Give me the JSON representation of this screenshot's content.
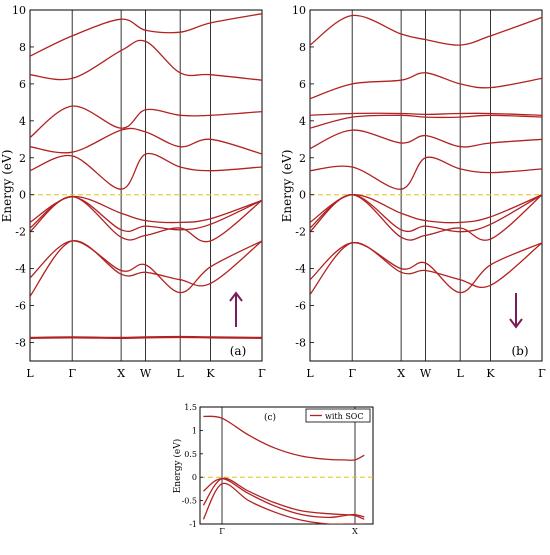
{
  "chart_data": [
    {
      "type": "line",
      "panel_label": "(a)",
      "ylabel": "Energy (eV)",
      "ylim": [
        -9,
        10
      ],
      "yticks": [
        "-8",
        "-6",
        "-4",
        "-2",
        "0",
        "2",
        "4",
        "6",
        "8",
        "10"
      ],
      "kpoints": [
        "L",
        "Γ",
        "X",
        "W",
        "L",
        "K",
        "Γ"
      ],
      "kpos": [
        0,
        1,
        2.16,
        2.74,
        3.56,
        4.28,
        5.5
      ],
      "fermi_level": 0,
      "arrow": "up",
      "colors": {
        "bands": "#b22222",
        "fermi": "#e8c018",
        "green": "#2e8b2e",
        "arrow": "#7a1c5e"
      },
      "bands": [
        [
          -7.75,
          -7.72,
          -7.75,
          -7.72,
          -7.7,
          -7.72,
          -7.75
        ],
        [
          -5.5,
          -2.5,
          -4.3,
          -4.2,
          -4.6,
          -4.8,
          -2.5
        ],
        [
          -4.5,
          -2.5,
          -4.1,
          -3.8,
          -5.3,
          -3.9,
          -2.5
        ],
        [
          -2.0,
          -0.1,
          -2.3,
          -2.2,
          -1.8,
          -2.5,
          -0.3
        ],
        [
          -1.8,
          -0.1,
          -1.9,
          -1.7,
          -1.9,
          -1.6,
          -0.3
        ],
        [
          -1.5,
          -0.1,
          -1.0,
          -1.4,
          -1.5,
          -1.3,
          -0.3
        ],
        [
          1.3,
          2.1,
          0.3,
          2.2,
          1.5,
          1.3,
          1.5
        ],
        [
          2.6,
          2.3,
          3.5,
          3.4,
          2.6,
          3.0,
          2.2
        ],
        [
          3.1,
          4.8,
          3.6,
          4.6,
          4.3,
          4.3,
          4.5
        ],
        [
          6.5,
          6.3,
          7.8,
          8.3,
          6.6,
          6.5,
          6.2
        ],
        [
          7.5,
          8.6,
          9.5,
          8.9,
          8.8,
          9.3,
          9.8
        ]
      ]
    },
    {
      "type": "line",
      "panel_label": "(b)",
      "ylabel": "Energy (eV)",
      "ylim": [
        -9,
        10
      ],
      "yticks": [
        "-8",
        "-6",
        "-4",
        "-2",
        "0",
        "2",
        "4",
        "6",
        "8",
        "10"
      ],
      "kpoints": [
        "L",
        "Γ",
        "X",
        "W",
        "L",
        "K",
        "Γ"
      ],
      "kpos": [
        0,
        1,
        2.16,
        2.74,
        3.56,
        4.28,
        5.5
      ],
      "fermi_level": 0,
      "arrow": "down",
      "colors": {
        "bands": "#b22222",
        "fermi": "#e8c018",
        "arrow": "#7a1c5e"
      },
      "bands": [
        [
          -5.4,
          -2.6,
          -4.2,
          -4.1,
          -4.6,
          -4.9,
          -2.6
        ],
        [
          -4.6,
          -2.6,
          -4.0,
          -3.7,
          -5.3,
          -3.8,
          -2.6
        ],
        [
          -2.0,
          0.0,
          -2.3,
          -2.2,
          -1.8,
          -2.4,
          0.0
        ],
        [
          -1.8,
          0.0,
          -1.9,
          -1.7,
          -2.0,
          -1.6,
          0.0
        ],
        [
          -1.5,
          0.0,
          -1.0,
          -1.4,
          -1.5,
          -1.2,
          0.0
        ],
        [
          1.3,
          1.5,
          0.3,
          2.0,
          1.4,
          1.2,
          1.4
        ],
        [
          2.5,
          3.5,
          2.8,
          3.2,
          2.6,
          2.8,
          3.0
        ],
        [
          3.6,
          4.2,
          4.3,
          4.2,
          4.2,
          4.3,
          4.2
        ],
        [
          4.3,
          4.4,
          4.4,
          4.35,
          4.4,
          4.4,
          4.3
        ],
        [
          5.2,
          6.0,
          6.2,
          6.6,
          6.0,
          5.8,
          6.3
        ],
        [
          8.1,
          9.7,
          8.7,
          8.4,
          8.1,
          8.6,
          9.6
        ]
      ]
    },
    {
      "type": "line",
      "panel_label": "(c)",
      "ylabel": "Energy (eV)",
      "ylim": [
        -1,
        1.5
      ],
      "yticks": [
        "-1",
        "-0.5",
        "0",
        "0.5",
        "1",
        "1.5"
      ],
      "kpoints": [
        "Γ",
        "X"
      ],
      "legend": [
        "with SOC"
      ],
      "legend_position": "top-right",
      "fermi_level": 0,
      "colors": {
        "bands": "#b22222",
        "fermi": "#e8c018"
      },
      "series": [
        {
          "name": "with SOC",
          "x": [
            -0.14,
            0,
            0.2,
            0.4,
            0.6,
            0.8,
            0.92,
            1.0,
            1.07
          ],
          "values": [
            1.3,
            1.26,
            0.9,
            0.62,
            0.45,
            0.38,
            0.37,
            0.37,
            0.47
          ]
        },
        {
          "name": "with SOC",
          "x": [
            -0.14,
            0,
            0.2,
            0.4,
            0.6,
            0.8,
            0.92,
            1.0,
            1.07
          ],
          "values": [
            -0.3,
            -0.03,
            -0.35,
            -0.62,
            -0.8,
            -0.86,
            -0.82,
            -0.8,
            -0.85
          ]
        },
        {
          "name": "with SOC",
          "x": [
            -0.14,
            0,
            0.2,
            0.4,
            0.6,
            0.8,
            0.92,
            1.0,
            1.07
          ],
          "values": [
            -0.6,
            -0.03,
            -0.3,
            -0.55,
            -0.72,
            -0.78,
            -0.8,
            -0.82,
            -0.9
          ]
        },
        {
          "name": "with SOC",
          "x": [
            -0.14,
            0,
            0.2,
            0.4,
            0.6,
            0.8,
            0.92,
            1.0,
            1.07
          ],
          "values": [
            -0.9,
            -0.14,
            -0.5,
            -0.75,
            -0.92,
            -1.0,
            -1.0,
            -1.0,
            -1.0
          ]
        }
      ]
    }
  ]
}
